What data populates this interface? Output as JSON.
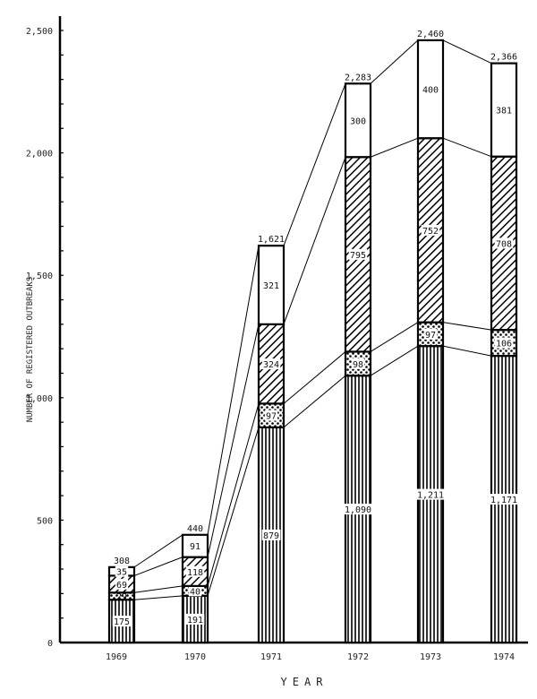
{
  "chart_data": {
    "type": "bar",
    "stacked": true,
    "title": "",
    "xlabel": "YEAR",
    "ylabel": "NUMBER OF REGISTERED OUTBREAKS",
    "ylim": [
      0,
      2500
    ],
    "yticks": [
      0,
      500,
      1000,
      1500,
      2000,
      2500
    ],
    "ytick_labels": [
      "0",
      "500",
      "1,000",
      "1,500",
      "2,000",
      "2,500"
    ],
    "minor_tick_step": 100,
    "grid": false,
    "legend": "none (segments distinguished by fill pattern)",
    "categories": [
      "1969",
      "1970",
      "1971",
      "1972",
      "1973",
      "1974"
    ],
    "series": [
      {
        "name": "vertical-line pattern (bottom)",
        "pattern": "vertical",
        "values": [
          175,
          191,
          879,
          1090,
          1211,
          1171
        ],
        "labels": [
          "175",
          "191",
          "879",
          "1,090",
          "1,211",
          "1,171"
        ]
      },
      {
        "name": "dotted pattern",
        "pattern": "dots",
        "values": [
          29,
          40,
          97,
          98,
          97,
          106
        ],
        "labels": [
          "29",
          "40",
          "97",
          "98",
          "97",
          "106"
        ]
      },
      {
        "name": "diagonal hatch pattern",
        "pattern": "diagonal",
        "values": [
          69,
          118,
          324,
          795,
          752,
          708
        ],
        "labels": [
          "69",
          "118",
          "324",
          "795",
          "752",
          "708"
        ]
      },
      {
        "name": "open/white (top)",
        "pattern": "none",
        "values": [
          35,
          91,
          321,
          300,
          400,
          381
        ],
        "labels": [
          "35",
          "91",
          "321",
          "300",
          "400",
          "381"
        ]
      }
    ],
    "totals": [
      308,
      440,
      1621,
      2283,
      2460,
      2366
    ],
    "total_labels": [
      "308",
      "440",
      "1,621",
      "2,283",
      "2,460",
      "2,366"
    ],
    "annotations": "Thin connector lines join corresponding segment boundaries between adjacent bars"
  }
}
